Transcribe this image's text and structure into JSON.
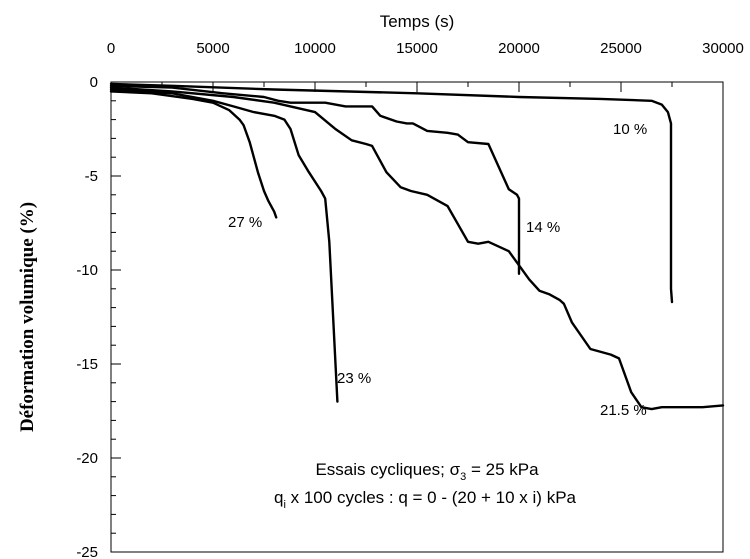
{
  "chart_data": {
    "type": "line",
    "title": "",
    "xlabel": "Temps (s)",
    "ylabel": "Déformation volumique (%)",
    "xlim": [
      0,
      30000
    ],
    "ylim": [
      -25,
      0
    ],
    "x_ticks": [
      0,
      5000,
      10000,
      15000,
      20000,
      25000,
      30000
    ],
    "y_ticks": [
      0,
      -5,
      -10,
      -15,
      -20,
      -25
    ],
    "x_tick_labels": [
      "0",
      "5000",
      "10000",
      "15000",
      "20000",
      "25000",
      "30000"
    ],
    "y_tick_labels": [
      "0",
      "-5",
      "-10",
      "-15",
      "-20",
      "-25"
    ],
    "x_axis_position": "top",
    "grid": false,
    "line_color": "#000000",
    "series": [
      {
        "name": "10 %",
        "points": [
          [
            0,
            -0.1
          ],
          [
            3000,
            -0.2
          ],
          [
            8000,
            -0.4
          ],
          [
            15000,
            -0.6
          ],
          [
            20000,
            -0.8
          ],
          [
            24000,
            -0.9
          ],
          [
            26500,
            -1.0
          ],
          [
            27000,
            -1.2
          ],
          [
            27300,
            -1.6
          ],
          [
            27450,
            -2.2
          ],
          [
            27450,
            -11.0
          ],
          [
            27500,
            -11.7
          ]
        ]
      },
      {
        "name": "14 %",
        "points": [
          [
            0,
            -0.2
          ],
          [
            3000,
            -0.3
          ],
          [
            5500,
            -0.6
          ],
          [
            7500,
            -0.8
          ],
          [
            8200,
            -1.0
          ],
          [
            8800,
            -1.1
          ],
          [
            10500,
            -1.1
          ],
          [
            11500,
            -1.3
          ],
          [
            12800,
            -1.3
          ],
          [
            13200,
            -1.8
          ],
          [
            14000,
            -2.1
          ],
          [
            14500,
            -2.2
          ],
          [
            14800,
            -2.2
          ],
          [
            15500,
            -2.6
          ],
          [
            16500,
            -2.7
          ],
          [
            17000,
            -2.8
          ],
          [
            17500,
            -3.2
          ],
          [
            18500,
            -3.3
          ],
          [
            19000,
            -4.5
          ],
          [
            19500,
            -5.7
          ],
          [
            19900,
            -6.0
          ],
          [
            20000,
            -6.2
          ],
          [
            20000,
            -10.2
          ]
        ]
      },
      {
        "name": "21.5 %",
        "points": [
          [
            0,
            -0.3
          ],
          [
            3000,
            -0.5
          ],
          [
            6000,
            -0.8
          ],
          [
            8000,
            -1.1
          ],
          [
            8800,
            -1.3
          ],
          [
            10000,
            -1.6
          ],
          [
            11000,
            -2.5
          ],
          [
            11800,
            -3.1
          ],
          [
            12500,
            -3.3
          ],
          [
            12800,
            -3.4
          ],
          [
            13500,
            -4.8
          ],
          [
            14200,
            -5.6
          ],
          [
            14700,
            -5.8
          ],
          [
            15500,
            -6.0
          ],
          [
            16000,
            -6.3
          ],
          [
            16500,
            -6.6
          ],
          [
            17500,
            -8.5
          ],
          [
            18000,
            -8.6
          ],
          [
            18500,
            -8.5
          ],
          [
            19500,
            -9.0
          ],
          [
            20500,
            -10.5
          ],
          [
            21000,
            -11.1
          ],
          [
            21500,
            -11.3
          ],
          [
            22000,
            -11.6
          ],
          [
            22200,
            -11.8
          ],
          [
            22600,
            -12.8
          ],
          [
            23500,
            -14.2
          ],
          [
            24500,
            -14.5
          ],
          [
            24900,
            -14.7
          ],
          [
            25500,
            -16.5
          ],
          [
            26000,
            -17.3
          ],
          [
            26500,
            -17.4
          ],
          [
            27000,
            -17.3
          ],
          [
            28000,
            -17.3
          ],
          [
            29000,
            -17.3
          ],
          [
            30000,
            -17.2
          ]
        ]
      },
      {
        "name": "23 %",
        "points": [
          [
            0,
            -0.4
          ],
          [
            3000,
            -0.6
          ],
          [
            5000,
            -1.0
          ],
          [
            6000,
            -1.3
          ],
          [
            7000,
            -1.6
          ],
          [
            8000,
            -1.8
          ],
          [
            8500,
            -2.0
          ],
          [
            8800,
            -2.5
          ],
          [
            9200,
            -3.9
          ],
          [
            9700,
            -4.8
          ],
          [
            10300,
            -5.8
          ],
          [
            10500,
            -6.2
          ],
          [
            10700,
            -8.5
          ],
          [
            10900,
            -12.8
          ],
          [
            11100,
            -17.0
          ]
        ]
      },
      {
        "name": "27 %",
        "points": [
          [
            0,
            -0.5
          ],
          [
            2000,
            -0.6
          ],
          [
            4000,
            -0.9
          ],
          [
            5000,
            -1.1
          ],
          [
            5800,
            -1.5
          ],
          [
            6300,
            -2.0
          ],
          [
            6500,
            -2.3
          ],
          [
            6800,
            -3.2
          ],
          [
            7200,
            -4.8
          ],
          [
            7500,
            -5.8
          ],
          [
            7700,
            -6.3
          ],
          [
            8000,
            -6.9
          ],
          [
            8100,
            -7.2
          ]
        ]
      }
    ],
    "annotations": {
      "line1_prefix": "Essais cycliques;  σ",
      "line1_sub": "3",
      "line1_suffix": " = 25 kPa",
      "line2_prefix": "q",
      "line2_sub": "i",
      "line2_suffix": " x 100 cycles : q = 0 - (20 + 10 x i) kPa"
    }
  }
}
